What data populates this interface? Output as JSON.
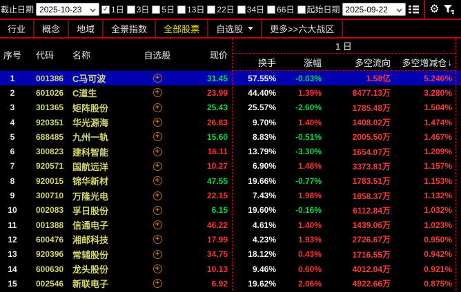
{
  "toolbar": {
    "end_date_label": "截止日期",
    "end_date_value": "2025-10-23",
    "periods": [
      {
        "label": "1日",
        "checked": true
      },
      {
        "label": "3日",
        "checked": false
      },
      {
        "label": "5日",
        "checked": false
      },
      {
        "label": "13日",
        "checked": false
      },
      {
        "label": "22日",
        "checked": false
      },
      {
        "label": "34日",
        "checked": false
      },
      {
        "label": "66日",
        "checked": false
      },
      {
        "label": "起始日期",
        "checked": false
      }
    ],
    "start_date_value": "2025-09-22"
  },
  "tabs": [
    {
      "label": "行业",
      "active": false,
      "dropdown": false
    },
    {
      "label": "概念",
      "active": false,
      "dropdown": false
    },
    {
      "label": "地域",
      "active": false,
      "dropdown": false
    },
    {
      "label": "全景指数",
      "active": false,
      "dropdown": false
    },
    {
      "label": "全部股票",
      "active": true,
      "dropdown": false
    },
    {
      "label": "自选股",
      "active": false,
      "dropdown": true
    },
    {
      "label": "更多>>六大战区",
      "active": false,
      "dropdown": false
    }
  ],
  "table": {
    "period_group_header": "1 日",
    "columns": [
      "序号",
      "代码",
      "名称",
      "自选股",
      "现价",
      "换手",
      "涨幅",
      "多空流向",
      "多空增减仓"
    ],
    "sort_column": "多空增减仓",
    "sort_indicator": "↓",
    "rows": [
      {
        "seq": "1",
        "code": "001386",
        "name": "C马可波",
        "price": "31.45",
        "price_dir": "down",
        "turnover": "57.55%",
        "change": "-0.03%",
        "change_dir": "down",
        "flow": "1.58亿",
        "delta": "5.246%",
        "selected": true
      },
      {
        "seq": "2",
        "code": "601026",
        "name": "C道生",
        "price": "23.99",
        "price_dir": "up",
        "turnover": "44.40%",
        "change": "1.39%",
        "change_dir": "up",
        "flow": "8477.13万",
        "delta": "3.280%",
        "selected": false
      },
      {
        "seq": "3",
        "code": "301365",
        "name": "矩阵股份",
        "price": "25.43",
        "price_dir": "down",
        "turnover": "25.57%",
        "change": "-2.60%",
        "change_dir": "down",
        "flow": "1785.48万",
        "delta": "1.504%",
        "selected": false
      },
      {
        "seq": "4",
        "code": "920351",
        "name": "华光源海",
        "price": "26.83",
        "price_dir": "up",
        "turnover": "9.70%",
        "change": "1.40%",
        "change_dir": "up",
        "flow": "1408.02万",
        "delta": "1.474%",
        "selected": false
      },
      {
        "seq": "5",
        "code": "688485",
        "name": "九州一轨",
        "price": "15.60",
        "price_dir": "down",
        "turnover": "8.83%",
        "change": "-0.51%",
        "change_dir": "down",
        "flow": "2005.50万",
        "delta": "1.467%",
        "selected": false
      },
      {
        "seq": "6",
        "code": "300823",
        "name": "建科智能",
        "price": "16.11",
        "price_dir": "up",
        "turnover": "13.79%",
        "change": "-3.30%",
        "change_dir": "down",
        "flow": "1654.07万",
        "delta": "1.209%",
        "selected": false
      },
      {
        "seq": "7",
        "code": "920571",
        "name": "国航远洋",
        "price": "10.27",
        "price_dir": "up",
        "turnover": "6.90%",
        "change": "1.48%",
        "change_dir": "up",
        "flow": "3373.81万",
        "delta": "1.157%",
        "selected": false
      },
      {
        "seq": "8",
        "code": "920015",
        "name": "锦华新材",
        "price": "47.55",
        "price_dir": "down",
        "turnover": "19.66%",
        "change": "-0.77%",
        "change_dir": "down",
        "flow": "1783.51万",
        "delta": "1.153%",
        "selected": false
      },
      {
        "seq": "9",
        "code": "300710",
        "name": "万隆光电",
        "price": "22.15",
        "price_dir": "up",
        "turnover": "7.43%",
        "change": "1.98%",
        "change_dir": "up",
        "flow": "1858.37万",
        "delta": "1.132%",
        "selected": false
      },
      {
        "seq": "10",
        "code": "002083",
        "name": "孚日股份",
        "price": "6.15",
        "price_dir": "down",
        "turnover": "19.60%",
        "change": "-0.16%",
        "change_dir": "down",
        "flow": "6112.84万",
        "delta": "1.032%",
        "selected": false
      },
      {
        "seq": "11",
        "code": "001388",
        "name": "信通电子",
        "price": "46.22",
        "price_dir": "up",
        "turnover": "4.61%",
        "change": "1.40%",
        "change_dir": "up",
        "flow": "1439.06万",
        "delta": "1.023%",
        "selected": false
      },
      {
        "seq": "12",
        "code": "600476",
        "name": "湘邮科技",
        "price": "17.99",
        "price_dir": "up",
        "turnover": "4.23%",
        "change": "1.93%",
        "change_dir": "up",
        "flow": "2726.67万",
        "delta": "0.950%",
        "selected": false
      },
      {
        "seq": "13",
        "code": "920396",
        "name": "常辅股份",
        "price": "34.75",
        "price_dir": "up",
        "turnover": "18.12%",
        "change": "0.43%",
        "change_dir": "up",
        "flow": "1716.55万",
        "delta": "0.942%",
        "selected": false
      },
      {
        "seq": "14",
        "code": "600630",
        "name": "龙头股份",
        "price": "10.13",
        "price_dir": "up",
        "turnover": "9.46%",
        "change": "0.60%",
        "change_dir": "up",
        "flow": "4012.04万",
        "delta": "0.921%",
        "selected": false
      },
      {
        "seq": "15",
        "code": "002546",
        "name": "新联电子",
        "price": "6.92",
        "price_dir": "up",
        "turnover": "19.62%",
        "change": "2.06%",
        "change_dir": "up",
        "flow": "4922.66万",
        "delta": "0.875%",
        "selected": false
      }
    ]
  },
  "icons": {
    "check-icon": "✓",
    "chevron-down-icon": "v",
    "list-icon": "☰",
    "gear-icon": "⚙",
    "filter-icon": "funnel",
    "circle-plus-icon": "⊕",
    "sort-down-icon": "↓",
    "triangle-down-icon": "▼"
  },
  "colors": {
    "accent_red_border": "#c80000",
    "dashed_grid_red": "#d40000",
    "up_red": "#ff3232",
    "down_green": "#00dc46",
    "code_yellow": "#d4d46c",
    "flow_red": "#ff3838",
    "active_tab_yellow": "#e8e800",
    "selected_row_blue": "#0101b2",
    "watch_icon_orange": "#b87018"
  }
}
